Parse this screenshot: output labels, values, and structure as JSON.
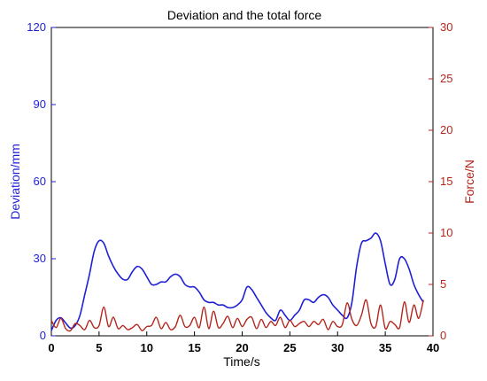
{
  "chart_data": {
    "type": "line",
    "title": "Deviation and the total force",
    "xlabel": "Time/s",
    "ylabel_left": "Deviation/mm",
    "ylabel_right": "Force/N",
    "xlim": [
      0,
      40
    ],
    "ylim_left": [
      0,
      120
    ],
    "ylim_right": [
      0,
      30
    ],
    "xticks": [
      "0",
      "5",
      "10",
      "15",
      "20",
      "25",
      "30",
      "35",
      "40"
    ],
    "yticks_left": [
      "0",
      "30",
      "60",
      "90",
      "120"
    ],
    "yticks_right": [
      "0",
      "5",
      "10",
      "15",
      "20",
      "25",
      "30"
    ],
    "grid": false,
    "colors": {
      "left": "#1f1fd6",
      "right": "#b3261e"
    },
    "series": [
      {
        "axis": "left",
        "color": "#1f1fd6",
        "x": [
          0,
          0.5,
          1,
          1.5,
          2,
          2.5,
          3,
          3.5,
          4,
          4.5,
          5,
          5.5,
          6,
          6.5,
          7,
          7.5,
          8,
          8.5,
          9,
          9.5,
          10,
          10.5,
          11,
          11.5,
          12,
          12.5,
          13,
          13.5,
          14,
          14.5,
          15,
          15.5,
          16,
          16.5,
          17,
          17.5,
          18,
          18.5,
          19,
          19.5,
          20,
          20.5,
          21,
          21.5,
          22,
          22.5,
          23,
          23.5,
          24,
          24.5,
          25,
          25.5,
          26,
          26.5,
          27,
          27.5,
          28,
          28.5,
          29,
          29.5,
          30,
          30.5,
          31,
          31.5,
          32,
          32.5,
          33,
          33.5,
          34,
          34.5,
          35,
          35.5,
          36,
          36.5,
          37,
          37.5,
          38,
          38.5,
          39
        ],
        "values": [
          2,
          6,
          7,
          5,
          3,
          4,
          8,
          16,
          24,
          33,
          37,
          36,
          31,
          27,
          24,
          22,
          22,
          25,
          27,
          26,
          23,
          20,
          20,
          21,
          21,
          23,
          24,
          23,
          20,
          19,
          19,
          17,
          14,
          13,
          13,
          12,
          12,
          11,
          11,
          12,
          14,
          19,
          18,
          15,
          12,
          9,
          7,
          6,
          10,
          8,
          6,
          8,
          10,
          14,
          14,
          13,
          15,
          16,
          15,
          12,
          10,
          8,
          7,
          13,
          27,
          36,
          37,
          38,
          40,
          37,
          28,
          20,
          22,
          30,
          30,
          26,
          20,
          16,
          13
        ],
        "x_min_region": [
          0,
          4.5
        ]
      },
      {
        "axis": "right",
        "color": "#b3261e",
        "x": [
          0,
          0.5,
          1,
          1.5,
          2,
          2.5,
          3,
          3.5,
          4,
          4.5,
          5,
          5.5,
          6,
          6.5,
          7,
          7.5,
          8,
          8.5,
          9,
          9.5,
          10,
          10.5,
          11,
          11.5,
          12,
          12.5,
          13,
          13.5,
          14,
          14.5,
          15,
          15.5,
          16,
          16.5,
          17,
          17.5,
          18,
          18.5,
          19,
          19.5,
          20,
          20.5,
          21,
          21.5,
          22,
          22.5,
          23,
          23.5,
          24,
          24.5,
          25,
          25.5,
          26,
          26.5,
          27,
          27.5,
          28,
          28.5,
          29,
          29.5,
          30,
          30.5,
          31,
          31.5,
          32,
          32.5,
          33,
          33.5,
          34,
          34.5,
          35,
          35.5,
          36,
          36.5,
          37,
          37.5,
          38,
          38.5,
          39
        ],
        "values": [
          1.5,
          0.8,
          1.7,
          0.7,
          0.5,
          1.2,
          1.0,
          0.6,
          1.5,
          0.8,
          1.0,
          2.8,
          0.9,
          1.8,
          0.7,
          1.0,
          0.6,
          0.8,
          1.1,
          0.5,
          0.9,
          1.0,
          1.8,
          0.7,
          1.3,
          0.6,
          0.9,
          2.0,
          0.9,
          1.0,
          1.8,
          0.8,
          2.8,
          0.7,
          2.4,
          0.8,
          1.2,
          1.9,
          0.8,
          1.7,
          0.9,
          1.6,
          1.8,
          0.7,
          1.6,
          0.8,
          1.4,
          1.0,
          1.8,
          0.8,
          1.5,
          0.9,
          1.2,
          1.4,
          0.9,
          1.4,
          1.1,
          1.6,
          0.6,
          1.4,
          0.9,
          1.1,
          3.2,
          1.6,
          1.0,
          2.0,
          3.5,
          1.2,
          0.9,
          3.0,
          0.7,
          1.4,
          1.1,
          0.8,
          3.3,
          1.3,
          3.0,
          1.7,
          3.5
        ]
      }
    ]
  }
}
